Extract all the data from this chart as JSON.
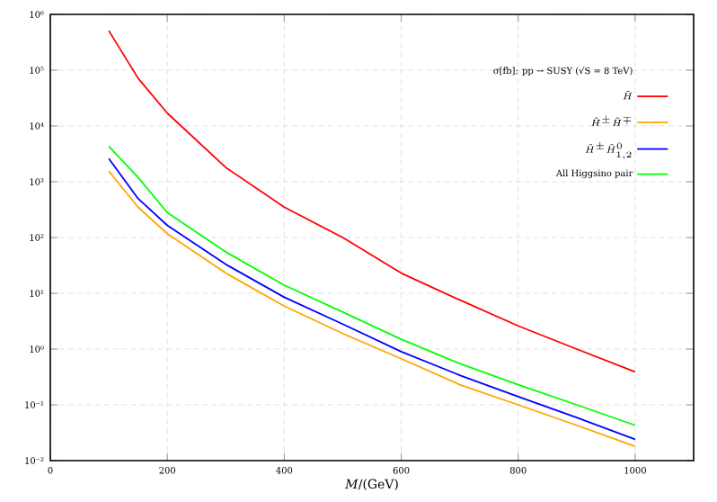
{
  "chart_data": {
    "type": "line",
    "legend_title": "σ[fb]: pp → SUSY (√S = 8 TeV)",
    "xlabel": "*M*/(GeV)",
    "x": [
      100,
      150,
      200,
      300,
      400,
      500,
      600,
      700,
      800,
      900,
      1000
    ],
    "series": [
      {
        "name": "\\tilde{H}",
        "color": "#ff0000",
        "values": [
          510000,
          72000,
          17000,
          1800,
          350,
          100,
          23,
          7.6,
          2.6,
          1.0,
          0.39
        ]
      },
      {
        "name": "\\tilde{H}^{\\pm}\\tilde{H}^{\\mp}",
        "color": "#ffa500",
        "values": [
          1550,
          350,
          117,
          23,
          5.9,
          1.9,
          0.67,
          0.23,
          0.1,
          0.043,
          0.018
        ]
      },
      {
        "name": "\\tilde{H}^{\\pm}\\tilde{H}^{0}_{1,2}",
        "color": "#0000ff",
        "values": [
          2600,
          500,
          165,
          33,
          8.5,
          2.8,
          0.9,
          0.34,
          0.14,
          0.059,
          0.024
        ]
      },
      {
        "name": "All Higgsino pair",
        "color": "#00ff00",
        "values": [
          4300,
          1200,
          280,
          55,
          14,
          4.6,
          1.5,
          0.55,
          0.23,
          0.1,
          0.043
        ]
      }
    ],
    "log": "y",
    "grid": true,
    "legend": "top right",
    "marker": "none",
    "line_style": "solid",
    "xlim": [
      0,
      1100
    ],
    "xticks": [
      0,
      200,
      400,
      600,
      800,
      1000
    ],
    "ylim": [
      0.01,
      1000000
    ],
    "yticks": [
      {
        "value": 0.01,
        "label": "10⁻²"
      },
      {
        "value": 0.1,
        "label": "10⁻¹"
      },
      {
        "value": 1,
        "label": "10⁰"
      },
      {
        "value": 10,
        "label": "10¹"
      },
      {
        "value": 100,
        "label": "10²"
      },
      {
        "value": 1000,
        "label": "10³"
      },
      {
        "value": 10000,
        "label": "10⁴"
      },
      {
        "value": 100000,
        "label": "10⁵"
      },
      {
        "value": 1000000,
        "label": "10⁶"
      }
    ]
  }
}
